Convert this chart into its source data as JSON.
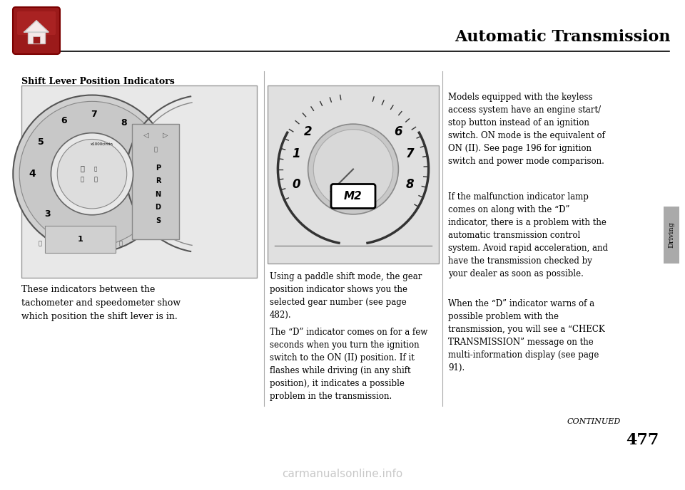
{
  "title": "Automatic Transmission",
  "page_number": "477",
  "continued_text": "CONTINUED",
  "background_color": "#ffffff",
  "section_title": "Shift Lever Position Indicators",
  "left_caption": "These indicators between the\ntachometer and speedometer show\nwhich position the shift lever is in.",
  "middle_para1": "Using a paddle shift mode, the gear\nposition indicator shows you the\nselected gear number (see page\n482).",
  "middle_para2": "The “D” indicator comes on for a few\nseconds when you turn the ignition\nswitch to the ON (II) position. If it\nflashes while driving (in any shift\nposition), it indicates a possible\nproblem in the transmission.",
  "right_para1": "Models equipped with the keyless\naccess system have an engine start/\nstop button instead of an ignition\nswitch. ON mode is the equivalent of\nON (II). See page 196 for ignition\nswitch and power mode comparison.",
  "right_para2": "If the malfunction indicator lamp\ncomes on along with the “D”\nindicator, there is a problem with the\nautomatic transmission control\nsystem. Avoid rapid acceleration, and\nhave the transmission checked by\nyour dealer as soon as possible.",
  "right_para3": "When the “D” indicator warns of a\npossible problem with the\ntransmission, you will see a “CHECK\nTRANSMISSION” message on the\nmulti-information display (see page\n91).",
  "sidebar_text": "Driving",
  "watermark_text": "carmanualsonline.info"
}
